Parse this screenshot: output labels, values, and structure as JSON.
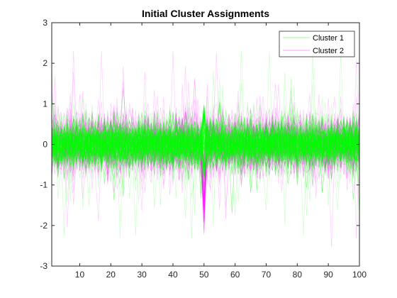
{
  "chart_data": {
    "type": "line",
    "title": "Initial Cluster Assignments",
    "xlabel": "",
    "ylabel": "",
    "xlim": [
      1,
      100
    ],
    "ylim": [
      -3,
      3
    ],
    "x_ticks": [
      10,
      20,
      30,
      40,
      50,
      60,
      70,
      80,
      90,
      100
    ],
    "y_ticks": [
      3,
      2,
      1,
      0,
      -1,
      -2,
      -3
    ],
    "grid": false,
    "legend_position": "top-right",
    "series": [
      {
        "name": "Cluster 1",
        "color": "#00ff00",
        "description_values": {
          "x_range": [
            1,
            100
          ],
          "typical_band": [
            -0.6,
            0.6
          ],
          "max_extent": [
            -2.7,
            2.3
          ],
          "spike_at_x": 50,
          "spike_range": [
            -0.9,
            1.0
          ]
        }
      },
      {
        "name": "Cluster 2",
        "color": "#ff00ff",
        "description_values": {
          "x_range": [
            1,
            100
          ],
          "typical_band": [
            -0.7,
            0.7
          ],
          "max_extent": [
            -2.8,
            2.3
          ],
          "spike_at_x": 50,
          "spike_range": [
            -2.3,
            -0.05
          ]
        }
      }
    ]
  }
}
